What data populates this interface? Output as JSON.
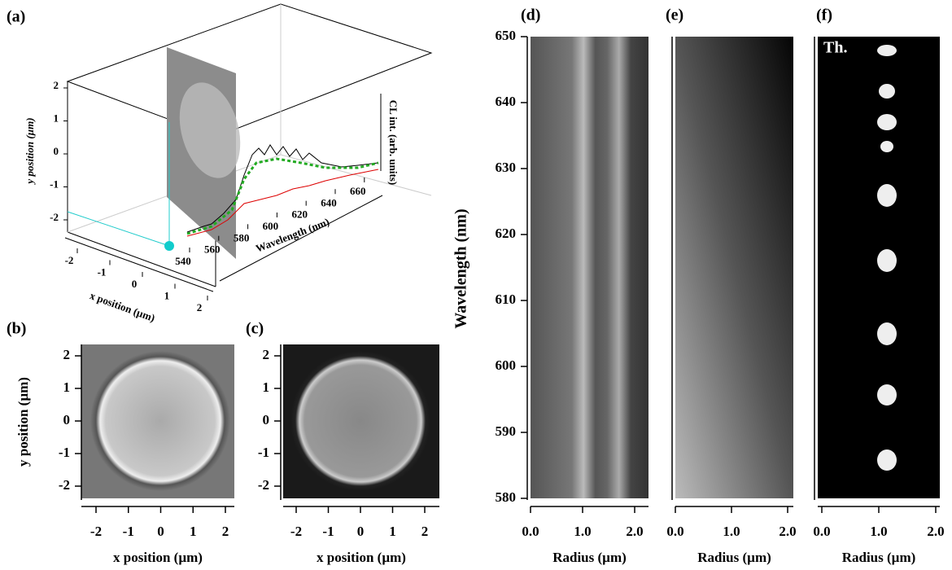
{
  "panels": {
    "a": {
      "label": "(a)",
      "y_axis_title": "y position (µm)",
      "x_axis_title": "x position (µm)",
      "z_axis_title": "Wavelength (nm)",
      "intensity_title": "CL int. (arb. units)",
      "yticks": [
        -2,
        -1,
        0,
        1,
        2
      ],
      "xticks": [
        -2,
        -1,
        0,
        1,
        2
      ],
      "wavelength_ticks": [
        540,
        560,
        580,
        600,
        620,
        640,
        660
      ]
    },
    "b": {
      "label": "(b)",
      "x_axis_title": "x position (µm)",
      "y_axis_title": "y position (µm)",
      "xticks": [
        -2,
        -1,
        0,
        1,
        2
      ],
      "yticks": [
        -2,
        -1,
        0,
        1,
        2
      ]
    },
    "c": {
      "label": "(c)",
      "x_axis_title": "x position (µm)",
      "xticks": [
        -2,
        -1,
        0,
        1,
        2
      ],
      "yticks": [
        -2,
        -1,
        0,
        1,
        2
      ]
    },
    "d": {
      "label": "(d)",
      "y_axis_title": "Wavelength (nm)",
      "yticks": [
        580,
        590,
        600,
        610,
        620,
        630,
        640,
        650
      ],
      "x_axis_title": "Radius (µm)",
      "xticks": [
        {
          "value": 0,
          "label": "0.0"
        },
        {
          "value": 1,
          "label": "1.0"
        },
        {
          "value": 2,
          "label": "2.0"
        }
      ]
    },
    "e": {
      "label": "(e)",
      "x_axis_title": "Radius (µm)",
      "xticks": [
        {
          "value": 0,
          "label": "0.0"
        },
        {
          "value": 1,
          "label": "1.0"
        },
        {
          "value": 2,
          "label": "2.0"
        }
      ]
    },
    "f": {
      "label": "(f)",
      "annotation": "Th.",
      "x_axis_title": "Radius (µm)",
      "xticks": [
        {
          "value": 0,
          "label": "0.0"
        },
        {
          "value": 1,
          "label": "1.0"
        },
        {
          "value": 2,
          "label": "2.0"
        }
      ]
    }
  }
}
